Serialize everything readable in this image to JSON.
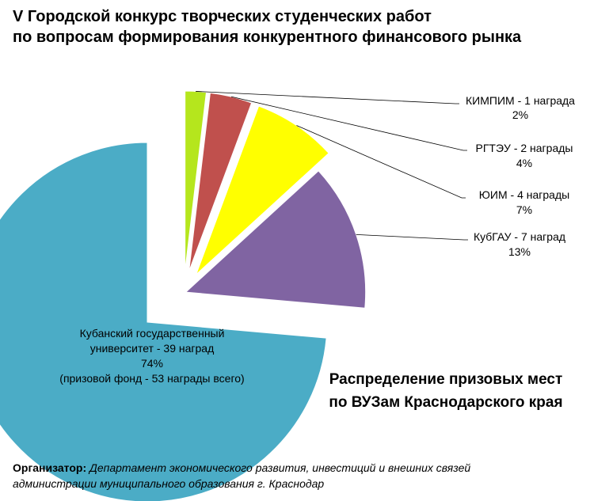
{
  "title_line1": "V Городской конкурс творческих студенческих работ",
  "title_line2": "по вопросам формирования конкурентного финансового рынка",
  "subtitle_line1": "Распределение призовых мест",
  "subtitle_line2": "по ВУЗам Краснодарского края",
  "footer": {
    "label": "Организатор:",
    "line1": "Департамент экономического развития, инвестиций и внешних связей",
    "line2": "администрации муниципального образования г. Краснодар"
  },
  "chart_data": {
    "type": "pie",
    "exploded": true,
    "slices": [
      {
        "label": "КИМПИМ - 1 награда",
        "percent_label": "2%",
        "value": 1,
        "color": "#b5e61d"
      },
      {
        "label": "РГТЭУ - 2 награды",
        "percent_label": "4%",
        "value": 2,
        "color": "#c0504d"
      },
      {
        "label": "ЮИМ - 4 награды",
        "percent_label": "7%",
        "value": 4,
        "color": "#ffff00"
      },
      {
        "label": "КубГАУ - 7 наград",
        "percent_label": "13%",
        "value": 7,
        "color": "#8064a2"
      },
      {
        "label_lines": [
          "Кубанский  государственный",
          "университет  - 39 наград"
        ],
        "percent_label": "74%",
        "note": "(призовой фонд  - 53 награды всего)",
        "value": 39,
        "color": "#4bacc6"
      }
    ]
  }
}
